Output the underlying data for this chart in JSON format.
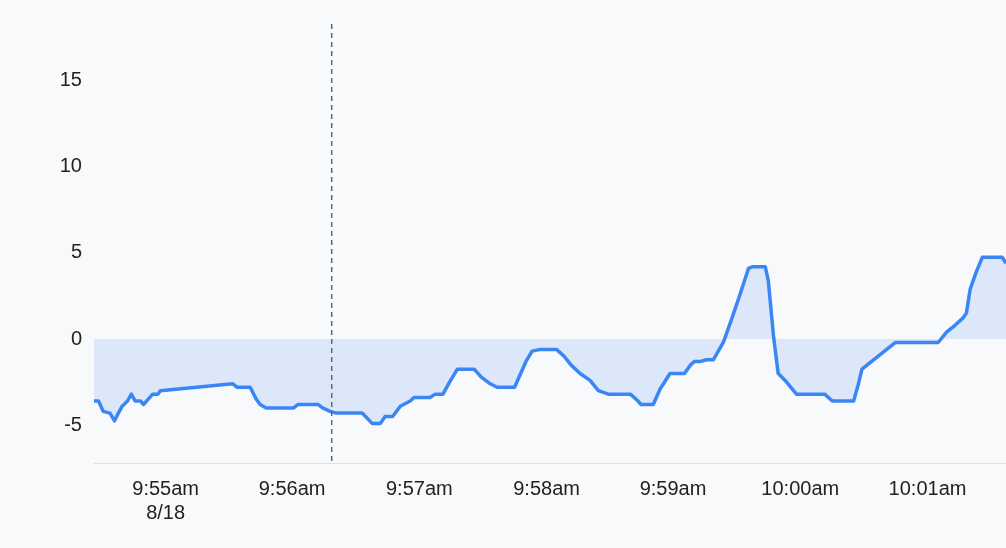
{
  "chart_data": {
    "type": "area",
    "x": [
      9.9073,
      9.9079,
      9.9085,
      9.9094,
      9.91,
      9.9105,
      9.911,
      9.9117,
      9.9122,
      9.9127,
      9.9134,
      9.9138,
      9.9144,
      9.915,
      9.9157,
      9.916,
      9.9255,
      9.9261,
      9.9278,
      9.9286,
      9.9291,
      9.9299,
      9.9335,
      9.9341,
      9.9367,
      9.9373,
      9.9383,
      9.9391,
      9.9425,
      9.9438,
      9.9449,
      9.9455,
      9.9465,
      9.9475,
      9.9488,
      9.9493,
      9.9514,
      9.9521,
      9.9531,
      9.9541,
      9.955,
      9.9572,
      9.9581,
      9.9593,
      9.9602,
      9.9625,
      9.9633,
      9.964,
      9.9648,
      9.9659,
      9.968,
      9.969,
      9.9699,
      9.9711,
      9.9724,
      9.9735,
      9.9748,
      9.9777,
      9.9787,
      9.9791,
      9.9807,
      9.9816,
      9.9829,
      9.9848,
      9.9856,
      9.9861,
      9.9869,
      9.9877,
      9.9886,
      9.9899,
      9.9911,
      9.9921,
      9.9932,
      9.9937,
      9.9954,
      9.9958,
      9.9965,
      9.9971,
      9.9982,
      9.9995,
      10.0032,
      10.0042,
      10.007,
      10.0076,
      10.0081,
      10.0125,
      10.0181,
      10.0192,
      10.0203,
      10.0213,
      10.0218,
      10.0223,
      10.0231,
      10.0239,
      10.0265,
      10.027
    ],
    "series": [
      {
        "color": "#3b86f5",
        "values": [
          -3.6,
          -3.6,
          -4.2,
          -4.3,
          -4.75,
          -4.3,
          -3.9,
          -3.6,
          -3.2,
          -3.6,
          -3.6,
          -3.8,
          -3.5,
          -3.2,
          -3.2,
          -3.0,
          -2.6,
          -2.8,
          -2.8,
          -3.5,
          -3.8,
          -4.0,
          -4.0,
          -3.8,
          -3.8,
          -4.0,
          -4.2,
          -4.3,
          -4.3,
          -4.9,
          -4.9,
          -4.5,
          -4.5,
          -3.9,
          -3.6,
          -3.4,
          -3.4,
          -3.2,
          -3.2,
          -2.4,
          -1.75,
          -1.75,
          -2.2,
          -2.6,
          -2.8,
          -2.8,
          -2.0,
          -1.3,
          -0.7,
          -0.6,
          -0.6,
          -1.0,
          -1.5,
          -2.0,
          -2.4,
          -3.0,
          -3.2,
          -3.2,
          -3.6,
          -3.8,
          -3.8,
          -2.9,
          -2.0,
          -2.0,
          -1.5,
          -1.3,
          -1.3,
          -1.2,
          -1.2,
          -0.2,
          1.3,
          2.6,
          4.1,
          4.2,
          4.2,
          3.4,
          0.1,
          -2.0,
          -2.5,
          -3.2,
          -3.2,
          -3.6,
          -3.6,
          -2.65,
          -1.75,
          -0.2,
          -0.2,
          0.4,
          0.8,
          1.2,
          1.5,
          2.9,
          3.9,
          4.75,
          4.75,
          4.4
        ]
      }
    ],
    "xticks": [
      {
        "value": 9.9167,
        "label": "9:55am\n8/18"
      },
      {
        "value": 9.9333,
        "label": "9:56am"
      },
      {
        "value": 9.95,
        "label": "9:57am"
      },
      {
        "value": 9.9667,
        "label": "9:58am"
      },
      {
        "value": 9.9833,
        "label": "9:59am"
      },
      {
        "value": 10.0,
        "label": "10:00am"
      },
      {
        "value": 10.0167,
        "label": "10:01am"
      }
    ],
    "xlim": [
      9.9073,
      10.027
    ],
    "ylim": [
      -7.2,
      18.3
    ],
    "yticks": [
      -5,
      0,
      5,
      10,
      15
    ],
    "grid": false,
    "legend": false,
    "ref_lines": [
      {
        "axis": "x",
        "value": 9.9385,
        "color": "#5a6b70",
        "line_style": "dashed"
      }
    ]
  }
}
